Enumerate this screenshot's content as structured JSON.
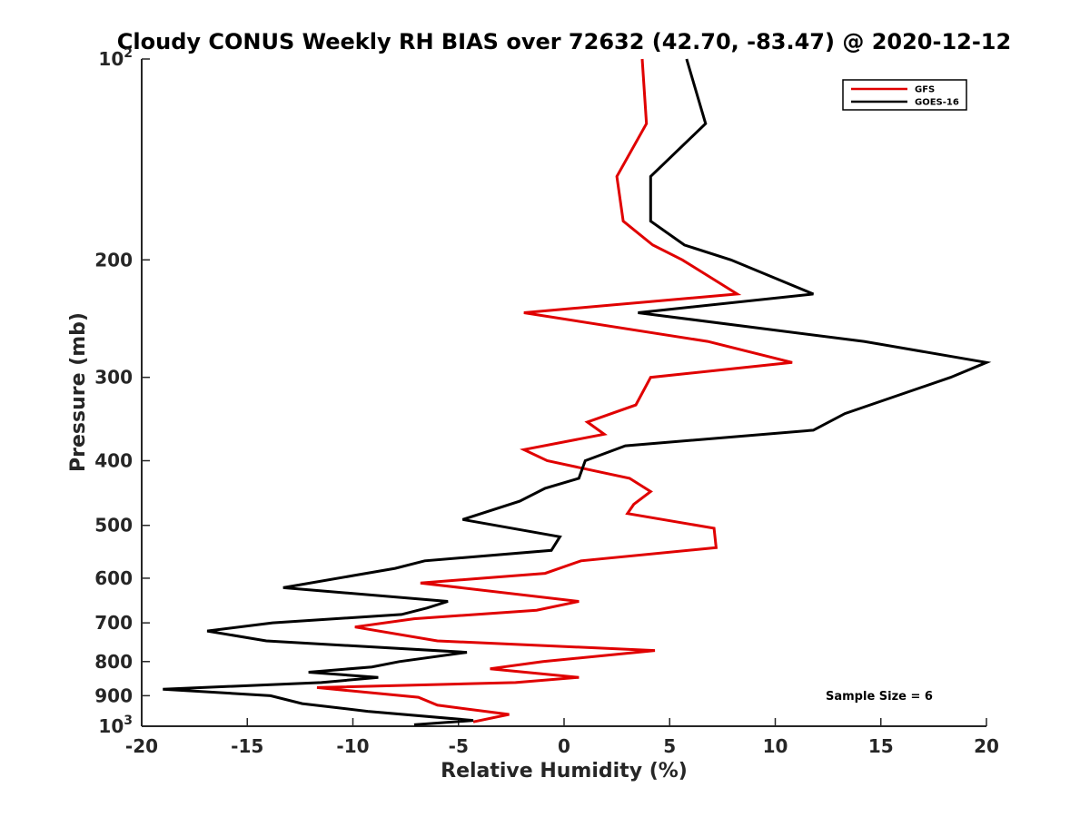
{
  "chart_data": {
    "type": "line",
    "title": "Cloudy CONUS Weekly RH BIAS over 72632 (42.70, -83.47) @ 2020-12-12",
    "xlabel": "Relative Humidity (%)",
    "ylabel": "Pressure (mb)",
    "xlim": [
      -20,
      20
    ],
    "ylim": [
      100,
      1000
    ],
    "yscale": "log",
    "y_reversed": true,
    "grid": false,
    "legend_position": "top-right",
    "x_ticks": [
      {
        "value": -20,
        "label": "-20"
      },
      {
        "value": -15,
        "label": "-15"
      },
      {
        "value": -10,
        "label": "-10"
      },
      {
        "value": -5,
        "label": "-5"
      },
      {
        "value": 0,
        "label": "0"
      },
      {
        "value": 5,
        "label": "5"
      },
      {
        "value": 10,
        "label": "10"
      },
      {
        "value": 15,
        "label": "15"
      },
      {
        "value": 20,
        "label": "20"
      }
    ],
    "y_ticks": [
      {
        "value": 100,
        "base": "10",
        "exp": "2"
      },
      {
        "value": 200,
        "label": "200"
      },
      {
        "value": 300,
        "label": "300"
      },
      {
        "value": 400,
        "label": "400"
      },
      {
        "value": 500,
        "label": "500"
      },
      {
        "value": 600,
        "label": "600"
      },
      {
        "value": 700,
        "label": "700"
      },
      {
        "value": 800,
        "label": "800"
      },
      {
        "value": 900,
        "label": "900"
      },
      {
        "value": 1000,
        "base": "10",
        "exp": "3"
      }
    ],
    "series": [
      {
        "name": "GFS",
        "color": "#e00000",
        "points": [
          [
            3.7,
            100
          ],
          [
            3.9,
            125
          ],
          [
            2.5,
            150
          ],
          [
            2.8,
            175
          ],
          [
            4.2,
            190
          ],
          [
            5.6,
            200
          ],
          [
            8.2,
            225
          ],
          [
            -1.9,
            240
          ],
          [
            6.8,
            265
          ],
          [
            10.8,
            285
          ],
          [
            4.1,
            300
          ],
          [
            3.4,
            330
          ],
          [
            1.1,
            350
          ],
          [
            1.9,
            365
          ],
          [
            -1.9,
            385
          ],
          [
            -0.8,
            400
          ],
          [
            3.1,
            425
          ],
          [
            4.1,
            445
          ],
          [
            3.3,
            465
          ],
          [
            3.0,
            480
          ],
          [
            7.1,
            505
          ],
          [
            7.2,
            540
          ],
          [
            0.8,
            565
          ],
          [
            -0.9,
            590
          ],
          [
            -6.8,
            610
          ],
          [
            0.7,
            650
          ],
          [
            -1.3,
            670
          ],
          [
            -7.1,
            690
          ],
          [
            -9.9,
            710
          ],
          [
            -6.0,
            745
          ],
          [
            4.3,
            770
          ],
          [
            -1.0,
            800
          ],
          [
            -3.5,
            820
          ],
          [
            0.7,
            845
          ],
          [
            -2.3,
            860
          ],
          [
            -11.7,
            875
          ],
          [
            -6.9,
            905
          ],
          [
            -6.0,
            930
          ],
          [
            -2.6,
            960
          ],
          [
            -4.3,
            985
          ]
        ]
      },
      {
        "name": "GOES-16",
        "color": "#000000",
        "points": [
          [
            5.8,
            100
          ],
          [
            6.7,
            125
          ],
          [
            4.1,
            150
          ],
          [
            4.1,
            175
          ],
          [
            5.7,
            190
          ],
          [
            7.9,
            200
          ],
          [
            11.8,
            225
          ],
          [
            3.5,
            240
          ],
          [
            14.2,
            265
          ],
          [
            20.0,
            285
          ],
          [
            18.3,
            300
          ],
          [
            13.3,
            340
          ],
          [
            11.8,
            360
          ],
          [
            2.9,
            380
          ],
          [
            1.0,
            400
          ],
          [
            0.7,
            425
          ],
          [
            -0.9,
            440
          ],
          [
            -2.1,
            460
          ],
          [
            -4.8,
            490
          ],
          [
            -0.2,
            520
          ],
          [
            -0.6,
            545
          ],
          [
            -6.6,
            565
          ],
          [
            -8.0,
            580
          ],
          [
            -13.3,
            620
          ],
          [
            -5.5,
            650
          ],
          [
            -6.5,
            665
          ],
          [
            -7.7,
            680
          ],
          [
            -13.8,
            700
          ],
          [
            -16.9,
            720
          ],
          [
            -14.1,
            745
          ],
          [
            -4.6,
            775
          ],
          [
            -7.8,
            800
          ],
          [
            -9.1,
            815
          ],
          [
            -12.1,
            830
          ],
          [
            -8.8,
            845
          ],
          [
            -11.5,
            860
          ],
          [
            -19.0,
            880
          ],
          [
            -13.9,
            900
          ],
          [
            -12.4,
            925
          ],
          [
            -9.3,
            950
          ],
          [
            -4.3,
            980
          ],
          [
            -7.1,
            995
          ]
        ]
      }
    ],
    "annotation": "Sample Size = 6"
  }
}
